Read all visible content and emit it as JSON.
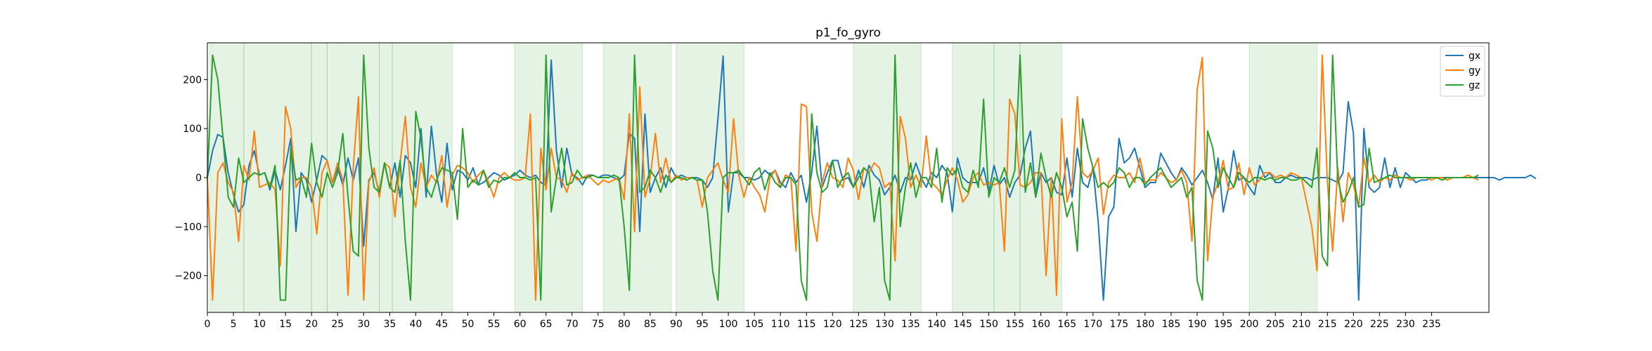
{
  "chart_data": {
    "type": "line",
    "title": "p1_fo_gyro",
    "xlabel": "",
    "ylabel": "",
    "xlim": [
      0,
      246
    ],
    "ylim": [
      -275,
      275
    ],
    "xticks": [
      0,
      5,
      10,
      15,
      20,
      25,
      30,
      35,
      40,
      45,
      50,
      55,
      60,
      65,
      70,
      75,
      80,
      85,
      90,
      95,
      100,
      105,
      110,
      115,
      120,
      125,
      130,
      135,
      140,
      145,
      150,
      155,
      160,
      165,
      170,
      175,
      180,
      185,
      190,
      195,
      200,
      205,
      210,
      215,
      220,
      225,
      230,
      235
    ],
    "yticks": [
      -200,
      -100,
      0,
      100,
      200
    ],
    "legend_position": "upper right",
    "shaded_regions": [
      [
        0.5,
        7
      ],
      [
        7,
        20
      ],
      [
        20,
        23
      ],
      [
        23,
        33
      ],
      [
        33,
        35.5
      ],
      [
        35.5,
        47
      ],
      [
        59,
        72
      ],
      [
        76,
        89
      ],
      [
        90,
        103
      ],
      [
        124,
        137
      ],
      [
        143,
        151
      ],
      [
        151,
        156
      ],
      [
        156,
        164
      ],
      [
        200,
        213
      ]
    ],
    "shade_color": "#2ca02c",
    "series": [
      {
        "name": "gx",
        "color": "#1f77b4",
        "values": [
          0,
          55,
          88,
          82,
          10,
          -35,
          -70,
          -55,
          25,
          55,
          5,
          10,
          -25,
          15,
          -25,
          25,
          80,
          -110,
          10,
          -5,
          -50,
          -5,
          45,
          35,
          -10,
          20,
          -15,
          40,
          -5,
          40,
          -140,
          -5,
          10,
          -30,
          30,
          -20,
          30,
          -40,
          45,
          30,
          -20,
          100,
          -40,
          105,
          5,
          -50,
          70,
          -25,
          15,
          10,
          -5,
          20,
          -15,
          -10,
          0,
          10,
          5,
          -5,
          0,
          5,
          15,
          5,
          0,
          5,
          -10,
          -15,
          240,
          55,
          -20,
          60,
          5,
          0,
          -15,
          5,
          5,
          0,
          5,
          5,
          0,
          -5,
          5,
          90,
          80,
          -110,
          130,
          -30,
          0,
          20,
          -20,
          20,
          0,
          5,
          0,
          0,
          0,
          -5,
          -20,
          0,
          120,
          248,
          -70,
          10,
          10,
          0,
          0,
          -5,
          0,
          15,
          5,
          15,
          -10,
          -20,
          10,
          -10,
          5,
          -50,
          10,
          105,
          -20,
          10,
          35,
          35,
          -5,
          0,
          -20,
          15,
          -20,
          25,
          5,
          -5,
          -35,
          -20,
          5,
          -30,
          0,
          -5,
          30,
          0,
          -20,
          10,
          0,
          25,
          10,
          -70,
          40,
          0,
          -10,
          -10,
          -10,
          20,
          -30,
          25,
          -15,
          0,
          -40,
          -10,
          5,
          60,
          95,
          -40,
          10,
          -10,
          0,
          -30,
          -35,
          40,
          -40,
          60,
          -10,
          -20,
          20,
          -90,
          -250,
          -80,
          -60,
          80,
          30,
          40,
          60,
          20,
          -20,
          -10,
          -10,
          50,
          30,
          10,
          -5,
          20,
          5,
          -15,
          0,
          15,
          -10,
          -45,
          40,
          -70,
          -20,
          55,
          -5,
          0,
          -20,
          -35,
          25,
          0,
          10,
          -10,
          -10,
          0,
          5,
          0,
          0,
          0,
          -5,
          0,
          0,
          0,
          -5,
          -10,
          10,
          155,
          90,
          -250,
          100,
          -20,
          -30,
          -20,
          40,
          -20,
          20,
          -20,
          10,
          0,
          -10,
          -5,
          -5,
          0,
          0,
          0,
          0,
          0,
          0,
          0,
          0,
          0,
          0,
          0,
          0,
          0,
          -5,
          0,
          0,
          0,
          0,
          0,
          5,
          -2
        ]
      },
      {
        "name": "gy",
        "color": "#ff7f0e",
        "values": [
          0,
          -250,
          10,
          30,
          -10,
          -30,
          -130,
          25,
          -5,
          95,
          -20,
          -15,
          -10,
          -25,
          -180,
          145,
          100,
          -20,
          0,
          0,
          -20,
          -115,
          10,
          35,
          -10,
          30,
          -5,
          -240,
          20,
          165,
          -250,
          -10,
          20,
          -40,
          30,
          20,
          -80,
          30,
          125,
          -20,
          -60,
          30,
          -20,
          5,
          -10,
          45,
          -60,
          5,
          25,
          20,
          10,
          -10,
          5,
          15,
          -10,
          -40,
          0,
          10,
          0,
          -5,
          -5,
          0,
          130,
          -250,
          60,
          -25,
          60,
          0,
          -5,
          -30,
          10,
          -5,
          0,
          5,
          -5,
          -15,
          -5,
          -10,
          -5,
          0,
          -45,
          130,
          -110,
          185,
          -40,
          0,
          90,
          -10,
          40,
          -10,
          5,
          -5,
          0,
          0,
          -5,
          -60,
          0,
          15,
          30,
          -5,
          -30,
          120,
          5,
          -40,
          0,
          -20,
          -35,
          -70,
          0,
          15,
          -20,
          5,
          0,
          -150,
          150,
          145,
          -70,
          -130,
          -10,
          30,
          0,
          -5,
          -20,
          40,
          15,
          -45,
          20,
          10,
          30,
          20,
          -20,
          -10,
          -170,
          125,
          80,
          -20,
          5,
          -20,
          85,
          -10,
          -20,
          -35,
          -5,
          20,
          -5,
          -50,
          -35,
          0,
          10,
          -15,
          -10,
          -15,
          -10,
          -150,
          160,
          130,
          -15,
          -20,
          -10,
          10,
          10,
          -200,
          0,
          -240,
          120,
          -50,
          -10,
          165,
          10,
          0,
          15,
          40,
          -75,
          -10,
          5,
          0,
          0,
          10,
          -10,
          40,
          -10,
          -5,
          -5,
          10,
          0,
          -10,
          -5,
          15,
          -10,
          -130,
          180,
          245,
          -170,
          -40,
          -10,
          35,
          -25,
          -20,
          30,
          -35,
          20,
          -15,
          -5,
          10,
          10,
          0,
          5,
          0,
          10,
          5,
          0,
          -50,
          -100,
          -190,
          250,
          -10,
          -150,
          20,
          -90,
          10,
          -15,
          -60,
          40,
          -10,
          5,
          -10,
          0,
          -5,
          5,
          0,
          0,
          -5,
          0,
          0,
          0,
          -5,
          0,
          0,
          -5,
          0,
          0,
          0,
          5,
          0,
          -5
        ]
      },
      {
        "name": "gz",
        "color": "#2ca02c",
        "values": [
          0,
          250,
          200,
          80,
          -40,
          -60,
          40,
          -10,
          0,
          10,
          5,
          10,
          -20,
          25,
          -250,
          -250,
          60,
          -5,
          0,
          -40,
          70,
          -10,
          -40,
          10,
          -20,
          10,
          90,
          -40,
          -150,
          -160,
          250,
          60,
          -20,
          -30,
          30,
          -20,
          -30,
          35,
          -130,
          -250,
          135,
          80,
          -20,
          -40,
          -5,
          20,
          15,
          10,
          -85,
          100,
          -20,
          -5,
          -15,
          15,
          -20,
          -5,
          -10,
          0,
          0,
          10,
          0,
          0,
          -5,
          0,
          -250,
          250,
          -70,
          0,
          60,
          -15,
          -10,
          15,
          0,
          0,
          5,
          0,
          0,
          0,
          5,
          0,
          -100,
          -230,
          250,
          -30,
          -20,
          15,
          0,
          -30,
          5,
          -10,
          0,
          0,
          -5,
          0,
          -5,
          -5,
          -70,
          -190,
          -250,
          0,
          10,
          10,
          15,
          0,
          -15,
          10,
          20,
          -25,
          10,
          -10,
          -20,
          0,
          0,
          -15,
          -210,
          -250,
          130,
          10,
          -30,
          -20,
          35,
          -20,
          0,
          10,
          -20,
          0,
          20,
          10,
          -90,
          -20,
          -210,
          -250,
          250,
          -100,
          -20,
          30,
          -40,
          0,
          0,
          -20,
          60,
          -50,
          20,
          5,
          20,
          -20,
          -30,
          15,
          -20,
          160,
          -40,
          0,
          -10,
          20,
          -20,
          15,
          250,
          -30,
          30,
          -40,
          50,
          0,
          -40,
          10,
          -20,
          -80,
          -50,
          -150,
          120,
          60,
          20,
          -20,
          -10,
          -20,
          -10,
          20,
          10,
          -20,
          0,
          0,
          -15,
          0,
          10,
          20,
          0,
          -20,
          -10,
          0,
          -40,
          -20,
          -210,
          -250,
          95,
          60,
          -20,
          20,
          0,
          -20,
          10,
          0,
          -10,
          0,
          0,
          -5,
          0,
          -5,
          0,
          0,
          -5,
          -5,
          0,
          -10,
          -20,
          60,
          -160,
          -180,
          250,
          -5,
          -50,
          -30,
          0,
          -60,
          -55,
          60,
          -10,
          -5,
          0,
          5,
          0,
          0,
          0,
          0,
          0,
          0,
          0,
          0,
          0,
          -5,
          0,
          0,
          0,
          0,
          0,
          0,
          5
        ]
      }
    ]
  }
}
